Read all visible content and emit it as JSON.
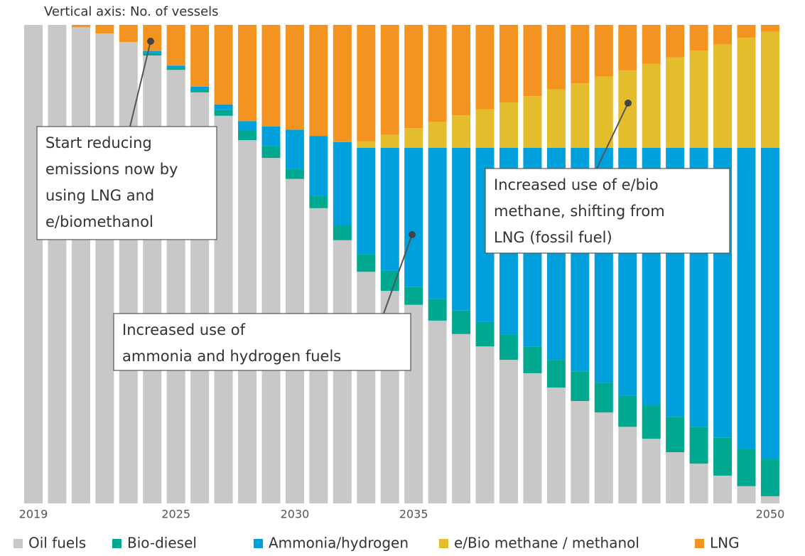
{
  "chart_data": {
    "type": "stacked_bar",
    "subtitle": "Vertical axis: No. of vessels",
    "categories": [
      "2019",
      null,
      null,
      null,
      null,
      null,
      "2025",
      null,
      null,
      null,
      null,
      "2030",
      null,
      null,
      null,
      null,
      "2035",
      null,
      null,
      null,
      null,
      null,
      null,
      null,
      null,
      null,
      null,
      null,
      null,
      null,
      null,
      "2050"
    ],
    "ylim": [
      0,
      100
    ],
    "series": [
      {
        "name": "Oil fuels",
        "color": "#c8c8c8",
        "values": [
          100,
          100,
          99.5,
          98.2,
          96.4,
          93.6,
          90.6,
          85.9,
          81.0,
          75.9,
          72.2,
          67.8,
          61.7,
          55.0,
          48.4,
          44.4,
          41.5,
          38.2,
          35.4,
          32.8,
          30.0,
          27.2,
          24.2,
          21.4,
          19.0,
          16.0,
          13.5,
          10.7,
          8.3,
          5.8,
          3.6,
          1.5
        ]
      },
      {
        "name": "Bio-diesel",
        "color": "#00a88f",
        "values": [
          0,
          0,
          0,
          0,
          0,
          0.5,
          0.4,
          0.5,
          1.2,
          2.1,
          2.4,
          2.1,
          2.5,
          3.1,
          3.7,
          4.2,
          3.7,
          4.5,
          4.9,
          5.1,
          5.3,
          5.6,
          5.8,
          6.2,
          6.2,
          6.5,
          7.0,
          7.4,
          7.7,
          7.9,
          7.7,
          7.7
        ]
      },
      {
        "name": "Ammonia/hydrogen",
        "color": "#00a0dc",
        "values": [
          0,
          0,
          0,
          0,
          0,
          0.4,
          0.5,
          0.7,
          1.2,
          1.9,
          4.2,
          8.2,
          12.6,
          17.4,
          22.2,
          25.7,
          29.1,
          31.6,
          34.0,
          36.4,
          39.0,
          41.5,
          44.3,
          46.7,
          49.1,
          51.8,
          53.8,
          56.2,
          58.3,
          60.6,
          63.0,
          65.1
        ]
      },
      {
        "name": "e/Bio methane / methanol",
        "color": "#e3bd2c",
        "values": [
          0,
          0,
          0,
          0,
          0,
          0,
          0,
          0,
          0,
          0,
          0,
          0,
          0,
          0,
          1.4,
          2.7,
          4.1,
          5.4,
          6.8,
          8.1,
          9.5,
          10.8,
          12.2,
          13.5,
          14.9,
          16.2,
          17.6,
          18.9,
          20.3,
          21.6,
          23.0,
          24.3
        ]
      },
      {
        "name": "LNG",
        "color": "#f39420",
        "values": [
          0,
          0,
          0.5,
          1.8,
          3.6,
          5.5,
          8.5,
          12.9,
          16.6,
          20.1,
          21.2,
          21.9,
          23.2,
          24.5,
          24.3,
          23.0,
          21.6,
          20.3,
          18.9,
          17.6,
          16.2,
          14.9,
          13.5,
          12.2,
          10.8,
          9.5,
          8.1,
          6.8,
          5.4,
          4.1,
          2.7,
          1.4
        ]
      }
    ],
    "annotations": [
      {
        "lines": [
          "Start reducing",
          "emissions now by",
          "using LNG and",
          "e/biomethanol"
        ]
      },
      {
        "lines": [
          "Increased use of",
          "ammonia and hydrogen fuels"
        ]
      },
      {
        "lines": [
          "Increased use of e/bio",
          "methane, shifting from",
          "LNG (fossil fuel)"
        ]
      }
    ]
  }
}
